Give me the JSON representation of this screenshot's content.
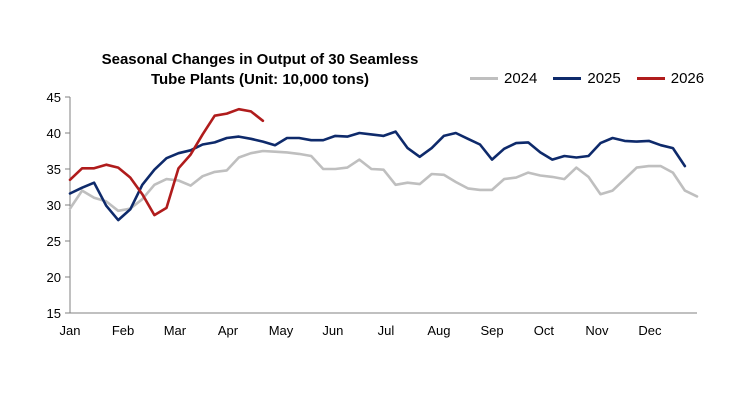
{
  "chart_data": {
    "type": "line",
    "title_lines": [
      "Seasonal Changes in Output of 30 Seamless",
      "Tube Plants (Unit: 10,000 tons)"
    ],
    "xlabel": "",
    "ylabel": "",
    "x_tick_labels": [
      "Jan",
      "Feb",
      "Mar",
      "Apr",
      "May",
      "Jun",
      "Jul",
      "Aug",
      "Sep",
      "Oct",
      "Nov",
      "Dec"
    ],
    "y_ticks": [
      15,
      20,
      25,
      30,
      35,
      40,
      45
    ],
    "ylim": [
      15,
      45
    ],
    "x_unit": "week",
    "x_range": [
      1,
      53
    ],
    "legend_position": "top-right",
    "grid": false,
    "series": [
      {
        "name": "2024",
        "color": "#bfbfbf",
        "values": [
          29.5,
          32.0,
          31.0,
          30.5,
          29.2,
          29.5,
          30.8,
          32.8,
          33.6,
          33.4,
          32.7,
          34.0,
          34.6,
          34.8,
          36.6,
          37.2,
          37.5,
          37.4,
          37.3,
          37.1,
          36.8,
          35.0,
          35.0,
          35.2,
          36.3,
          35.0,
          34.9,
          32.8,
          33.1,
          32.9,
          34.3,
          34.2,
          33.2,
          32.3,
          32.1,
          32.1,
          33.6,
          33.8,
          34.5,
          34.1,
          33.9,
          33.6,
          35.2,
          33.9,
          31.5,
          32.0,
          33.6,
          35.2,
          35.4,
          35.4,
          34.5,
          32.0,
          31.2
        ]
      },
      {
        "name": "2025",
        "color": "#0e2a6b",
        "values": [
          31.6,
          32.4,
          33.1,
          29.9,
          27.9,
          29.4,
          32.8,
          34.9,
          36.5,
          37.2,
          37.6,
          38.4,
          38.7,
          39.3,
          39.5,
          39.2,
          38.8,
          38.3,
          39.3,
          39.3,
          39.0,
          39.0,
          39.6,
          39.5,
          40.0,
          39.8,
          39.6,
          40.2,
          37.9,
          36.7,
          37.9,
          39.6,
          40.0,
          39.2,
          38.4,
          36.3,
          37.8,
          38.6,
          38.7,
          37.3,
          36.3,
          36.8,
          36.6,
          36.8,
          38.6,
          39.3,
          38.9,
          38.8,
          38.9,
          38.3,
          37.9,
          35.4
        ]
      },
      {
        "name": "2026",
        "color": "#b01c1c",
        "values": [
          33.5,
          35.1,
          35.1,
          35.6,
          35.2,
          33.8,
          31.5,
          28.6,
          29.6,
          35.1,
          37.0,
          39.8,
          42.4,
          42.7,
          43.3,
          43.0,
          41.7
        ]
      }
    ]
  }
}
